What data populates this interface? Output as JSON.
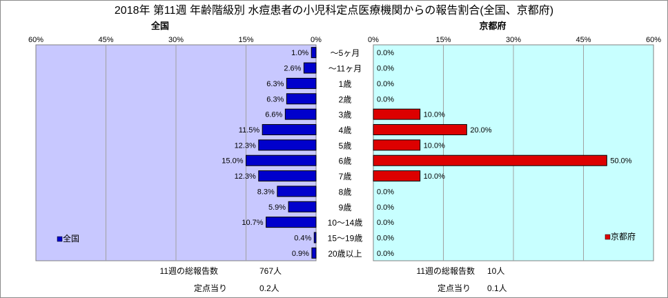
{
  "colors": {
    "national_bar": "#0000cc",
    "kyoto_bar": "#dd0000",
    "left_plot_bg": "#c8c8ff",
    "right_plot_bg": "#c8ffff",
    "grid": "#a0a0a0"
  },
  "chart_data": {
    "type": "bar",
    "orientation": "horizontal-butterfly",
    "title": "2018年 第11週 年齢階級別 水痘患者の小児科定点医療機関からの報告割合(全国、京都府)",
    "categories": [
      "～5ヶ月",
      "～11ヶ月",
      "1歳",
      "2歳",
      "3歳",
      "4歳",
      "5歳",
      "6歳",
      "7歳",
      "8歳",
      "9歳",
      "10～14歳",
      "15～19歳",
      "20歳以上"
    ],
    "panels": [
      {
        "side": "left",
        "title": "全国",
        "legend": "全国",
        "ticks": [
          "60%",
          "45%",
          "30%",
          "15%",
          "0%"
        ],
        "xlim": [
          0,
          60
        ],
        "direction": "reversed",
        "values": [
          1.0,
          2.6,
          6.3,
          6.3,
          6.6,
          11.5,
          12.3,
          15.0,
          12.3,
          8.3,
          5.9,
          10.7,
          0.4,
          0.9
        ],
        "value_labels": [
          "1.0%",
          "2.6%",
          "6.3%",
          "6.3%",
          "6.6%",
          "11.5%",
          "12.3%",
          "15.0%",
          "12.3%",
          "8.3%",
          "5.9%",
          "10.7%",
          "0.4%",
          "0.9%"
        ],
        "footer": [
          {
            "label": "11週の総報告数",
            "value": "767人"
          },
          {
            "label": "定点当り",
            "value": "0.2人"
          }
        ]
      },
      {
        "side": "right",
        "title": "京都府",
        "legend": "京都府",
        "ticks": [
          "0%",
          "15%",
          "30%",
          "45%",
          "60%"
        ],
        "xlim": [
          0,
          60
        ],
        "direction": "normal",
        "values": [
          0.0,
          0.0,
          0.0,
          0.0,
          10.0,
          20.0,
          10.0,
          50.0,
          10.0,
          0.0,
          0.0,
          0.0,
          0.0,
          0.0
        ],
        "value_labels": [
          "0.0%",
          "0.0%",
          "0.0%",
          "0.0%",
          "10.0%",
          "20.0%",
          "10.0%",
          "50.0%",
          "10.0%",
          "0.0%",
          "0.0%",
          "0.0%",
          "0.0%",
          "0.0%"
        ],
        "footer": [
          {
            "label": "11週の総報告数",
            "value": "10人"
          },
          {
            "label": "定点当り",
            "value": "0.1人"
          }
        ]
      }
    ],
    "grid": true,
    "legend_position": "bottom-left / bottom-right"
  }
}
